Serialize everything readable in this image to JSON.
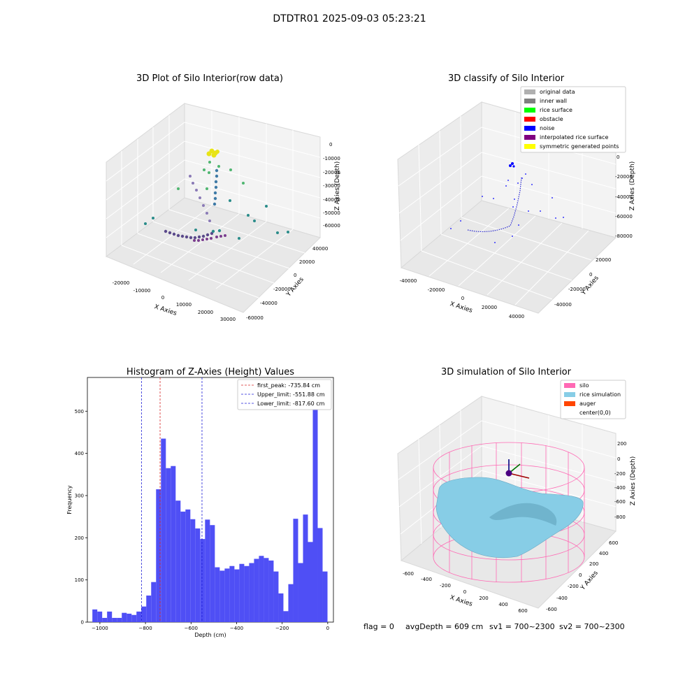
{
  "figure": {
    "suptitle": "DTDTR01 2025-09-03 05:23:21",
    "footer": {
      "flag": "flag = 0",
      "avg_depth": "avgDepth = 609 cm",
      "sv1": "sv1 = 700~2300",
      "sv2": "sv2 = 700~2300"
    }
  },
  "colors": {
    "hist_bar": "#4f4ff5",
    "first_peak_line": "#d62728",
    "limit_line": "#1f1fd6",
    "silo_wire": "#ff69b4",
    "rice_sim": "#87cde6",
    "auger": "#ff4500",
    "grid_pane": "#f2f2f2"
  },
  "chart_data": [
    {
      "type": "scatter3d",
      "title": "3D Plot of Silo Interior(row data)",
      "xlabel": "X Axies",
      "ylabel": "Y Axies",
      "zlabel": "Z Axies (Depth)",
      "x_ticks": [
        "-20000",
        "-10000",
        "0",
        "10000",
        "20000",
        "30000"
      ],
      "y_ticks": [
        "-60000",
        "-40000",
        "-20000",
        "0",
        "20000",
        "40000"
      ],
      "z_ticks": [
        "0",
        "-10000",
        "-20000",
        "-30000",
        "-40000",
        "-50000",
        "-60000"
      ],
      "colormap": "viridis"
    },
    {
      "type": "scatter3d",
      "title": "3D classify of Silo Interior",
      "xlabel": "X Axies",
      "ylabel": "Y Axies",
      "zlabel": "Z Axies (Depth)",
      "x_ticks": [
        "-40000",
        "-20000",
        "0",
        "20000",
        "40000"
      ],
      "y_ticks": [
        "-40000",
        "-20000",
        "0",
        "20000"
      ],
      "z_ticks": [
        "0",
        "-20000",
        "-40000",
        "-60000",
        "-80000"
      ],
      "legend": [
        {
          "label": "original data",
          "color": "#b0b0b0"
        },
        {
          "label": "inner wall",
          "color": "#808080"
        },
        {
          "label": "rice surface",
          "color": "#00ff00"
        },
        {
          "label": "obstacle",
          "color": "#ff0000"
        },
        {
          "label": "noise",
          "color": "#0000ff"
        },
        {
          "label": "interpolated rice surface",
          "color": "#800080"
        },
        {
          "label": "symmetric generated points",
          "color": "#ffff00"
        }
      ]
    },
    {
      "type": "bar",
      "title": "Histogram of Z-Axies (Height) Values",
      "xlabel": "Depth (cm)",
      "ylabel": "Frequency",
      "xlim": [
        -1055,
        25
      ],
      "ylim": [
        0,
        580
      ],
      "x_ticks": [
        -1000,
        -800,
        -600,
        -400,
        -200,
        0
      ],
      "y_ticks": [
        0,
        100,
        200,
        300,
        400,
        500
      ],
      "bin_start": -1033,
      "bin_width": 21.5,
      "values": [
        30,
        25,
        10,
        25,
        10,
        10,
        22,
        20,
        17,
        25,
        37,
        63,
        95,
        315,
        435,
        365,
        370,
        288,
        262,
        267,
        244,
        222,
        197,
        243,
        230,
        130,
        122,
        127,
        133,
        125,
        138,
        133,
        140,
        150,
        157,
        152,
        146,
        120,
        68,
        26,
        90,
        245,
        140,
        255,
        190,
        550,
        223,
        120
      ],
      "vlines": [
        {
          "x": -735.84,
          "label": "first_peak: -735.84 cm",
          "color": "#d62728"
        },
        {
          "x": -551.88,
          "label": "Upper_limit: -551.88 cm",
          "color": "#1f1fd6"
        },
        {
          "x": -817.6,
          "label": "Lower_limit: -817.60 cm",
          "color": "#1f1fd6"
        }
      ]
    },
    {
      "type": "surface3d",
      "title": "3D simulation of Silo Interior",
      "xlabel": "X Axies",
      "ylabel": "Y Axies",
      "zlabel": "Z Axies (Depth)",
      "x_ticks": [
        "-600",
        "-400",
        "-200",
        "0",
        "200",
        "400",
        "600"
      ],
      "y_ticks": [
        "-600",
        "-400",
        "-200",
        "0",
        "200",
        "400",
        "600"
      ],
      "z_ticks": [
        "200",
        "0",
        "-200",
        "-400",
        "-600",
        "-800"
      ],
      "legend": [
        {
          "label": "silo",
          "color": "#ff69b4"
        },
        {
          "label": "rice simulation",
          "color": "#87cde6"
        },
        {
          "label": "auger",
          "color": "#ff4500"
        },
        {
          "label": "center(0,0)",
          "color": ""
        }
      ]
    }
  ]
}
